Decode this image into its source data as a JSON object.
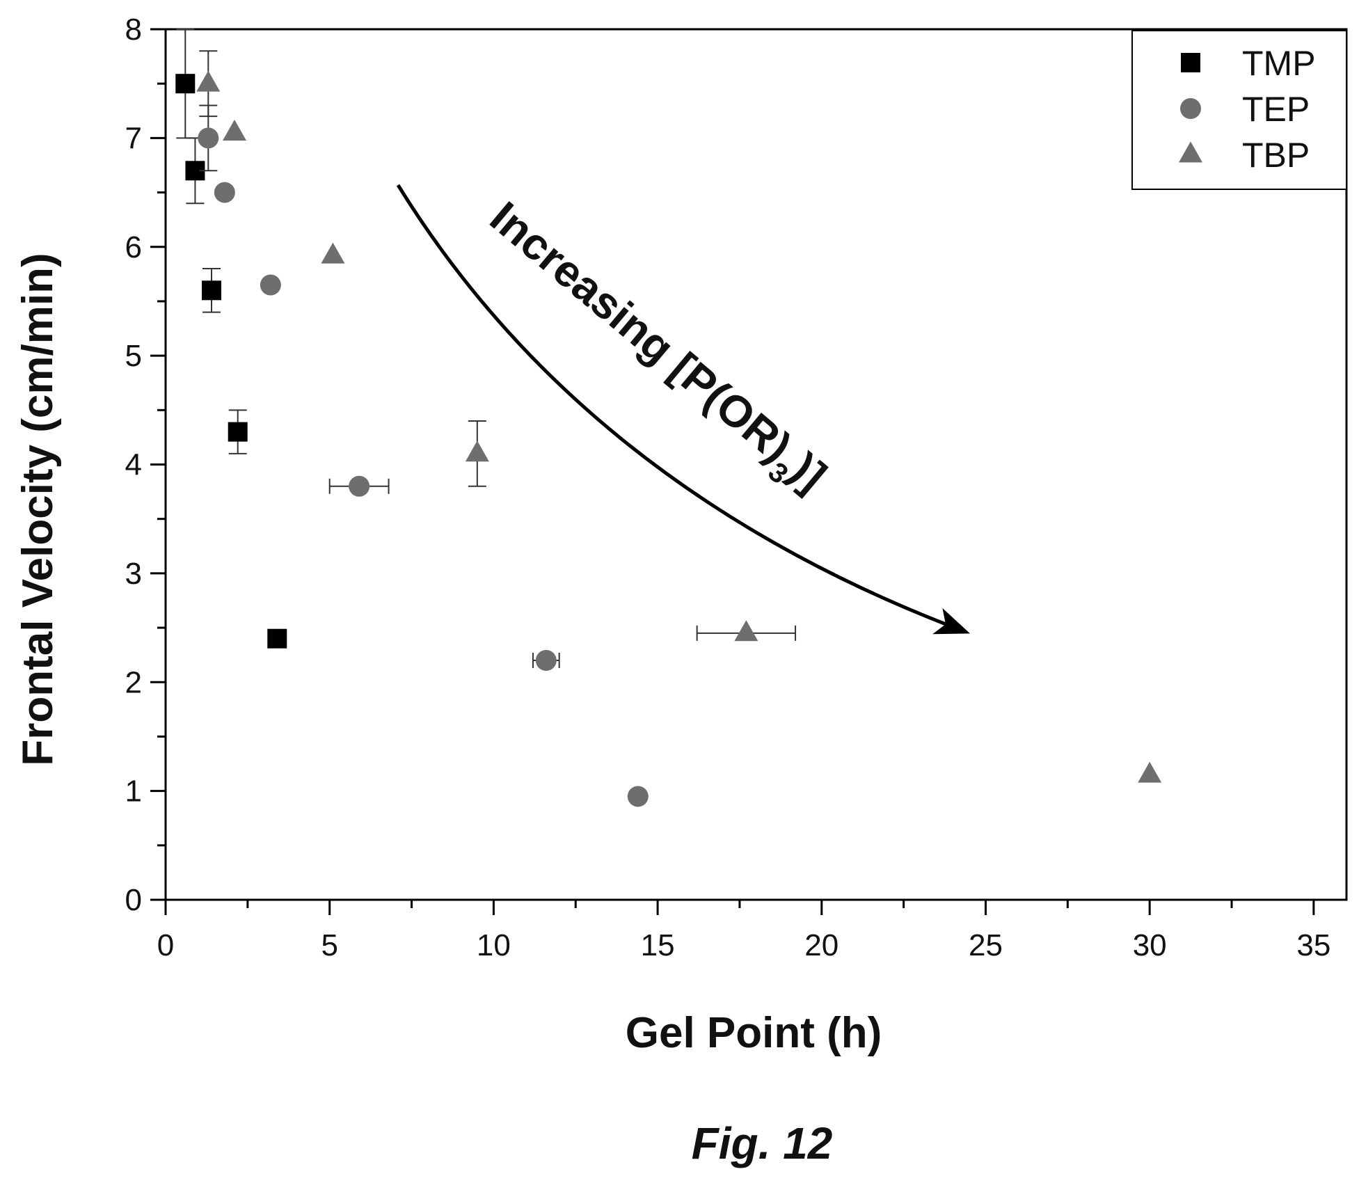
{
  "chart_data": {
    "type": "scatter",
    "xlabel": "Gel Point (h)",
    "ylabel": "Frontal Velocity (cm/min)",
    "xlim": [
      0,
      36
    ],
    "ylim": [
      0,
      8
    ],
    "x_ticks": [
      0,
      5,
      10,
      15,
      20,
      25,
      30,
      35
    ],
    "y_ticks": [
      0,
      1,
      2,
      3,
      4,
      5,
      6,
      7,
      8
    ],
    "grid": false,
    "legend_position": "top-right",
    "series": [
      {
        "name": "TMP",
        "marker": "square",
        "color": "#000000",
        "points": [
          {
            "x": 0.6,
            "y": 7.5,
            "yerr": 0.5
          },
          {
            "x": 0.9,
            "y": 6.7,
            "yerr": 0.3
          },
          {
            "x": 1.4,
            "y": 5.6,
            "yerr": 0.2
          },
          {
            "x": 2.2,
            "y": 4.3,
            "yerr": 0.2
          },
          {
            "x": 3.4,
            "y": 2.4
          }
        ]
      },
      {
        "name": "TEP",
        "marker": "circle",
        "color": "#6e6e6e",
        "points": [
          {
            "x": 1.3,
            "y": 7.0,
            "yerr": 0.3
          },
          {
            "x": 1.8,
            "y": 6.5
          },
          {
            "x": 3.2,
            "y": 5.65
          },
          {
            "x": 5.9,
            "y": 3.8,
            "xerr": 0.9
          },
          {
            "x": 11.6,
            "y": 2.2,
            "xerr": 0.4
          },
          {
            "x": 14.4,
            "y": 0.95
          }
        ]
      },
      {
        "name": "TBP",
        "marker": "triangle",
        "color": "#6e6e6e",
        "points": [
          {
            "x": 1.3,
            "y": 7.5,
            "yerr": 0.3
          },
          {
            "x": 2.1,
            "y": 7.05
          },
          {
            "x": 5.1,
            "y": 5.92
          },
          {
            "x": 9.5,
            "y": 4.1,
            "yerr": 0.3
          },
          {
            "x": 17.7,
            "y": 2.45,
            "xerr": 1.5
          },
          {
            "x": 30.0,
            "y": 1.15
          }
        ]
      }
    ],
    "annotation": {
      "text": "Increasing [P(OR)",
      "subscript": "3",
      "text_end": ")]"
    }
  },
  "caption": "Fig. 12"
}
